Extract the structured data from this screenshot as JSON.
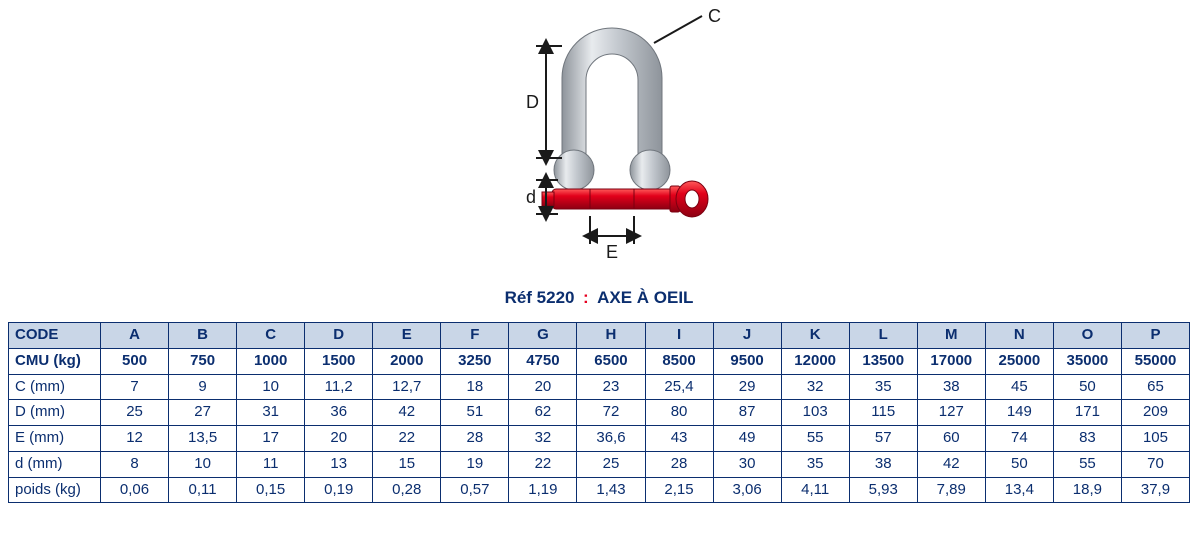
{
  "caption": {
    "ref": "Réf 5220",
    "separator": ":",
    "name": "AXE À OEIL",
    "ref_color": "#0b2e6f",
    "name_color": "#0b2e6f",
    "separator_color": "#e6001f"
  },
  "diagram": {
    "labels": {
      "C": "C",
      "D": "D",
      "d": "d",
      "E": "E"
    },
    "colors": {
      "steel_light": "#dcdfe3",
      "steel_mid": "#b9bec4",
      "steel_dark": "#8e949b",
      "pin_red": "#e2001a",
      "pin_red_dark": "#9e0012",
      "dim_line": "#1a1a1a"
    }
  },
  "table": {
    "header_bg": "#c9d6e7",
    "border_color": "#0b2e6f",
    "text_color": "#0b2e6f",
    "code_label": "CODE",
    "columns": [
      "A",
      "B",
      "C",
      "D",
      "E",
      "F",
      "G",
      "H",
      "I",
      "J",
      "K",
      "L",
      "M",
      "N",
      "O",
      "P"
    ],
    "rows": [
      {
        "label": "CMU (kg)",
        "bold": true,
        "values": [
          "500",
          "750",
          "1000",
          "1500",
          "2000",
          "3250",
          "4750",
          "6500",
          "8500",
          "9500",
          "12000",
          "13500",
          "17000",
          "25000",
          "35000",
          "55000"
        ]
      },
      {
        "label": "C (mm)",
        "values": [
          "7",
          "9",
          "10",
          "11,2",
          "12,7",
          "18",
          "20",
          "23",
          "25,4",
          "29",
          "32",
          "35",
          "38",
          "45",
          "50",
          "65"
        ]
      },
      {
        "label": "D (mm)",
        "values": [
          "25",
          "27",
          "31",
          "36",
          "42",
          "51",
          "62",
          "72",
          "80",
          "87",
          "103",
          "115",
          "127",
          "149",
          "171",
          "209"
        ]
      },
      {
        "label": "E (mm)",
        "values": [
          "12",
          "13,5",
          "17",
          "20",
          "22",
          "28",
          "32",
          "36,6",
          "43",
          "49",
          "55",
          "57",
          "60",
          "74",
          "83",
          "105"
        ]
      },
      {
        "label": "d (mm)",
        "values": [
          "8",
          "10",
          "11",
          "13",
          "15",
          "19",
          "22",
          "25",
          "28",
          "30",
          "35",
          "38",
          "42",
          "50",
          "55",
          "70"
        ]
      },
      {
        "label": "poids (kg)",
        "values": [
          "0,06",
          "0,11",
          "0,15",
          "0,19",
          "0,28",
          "0,57",
          "1,19",
          "1,43",
          "2,15",
          "3,06",
          "4,11",
          "5,93",
          "7,89",
          "13,4",
          "18,9",
          "37,9"
        ]
      }
    ]
  }
}
